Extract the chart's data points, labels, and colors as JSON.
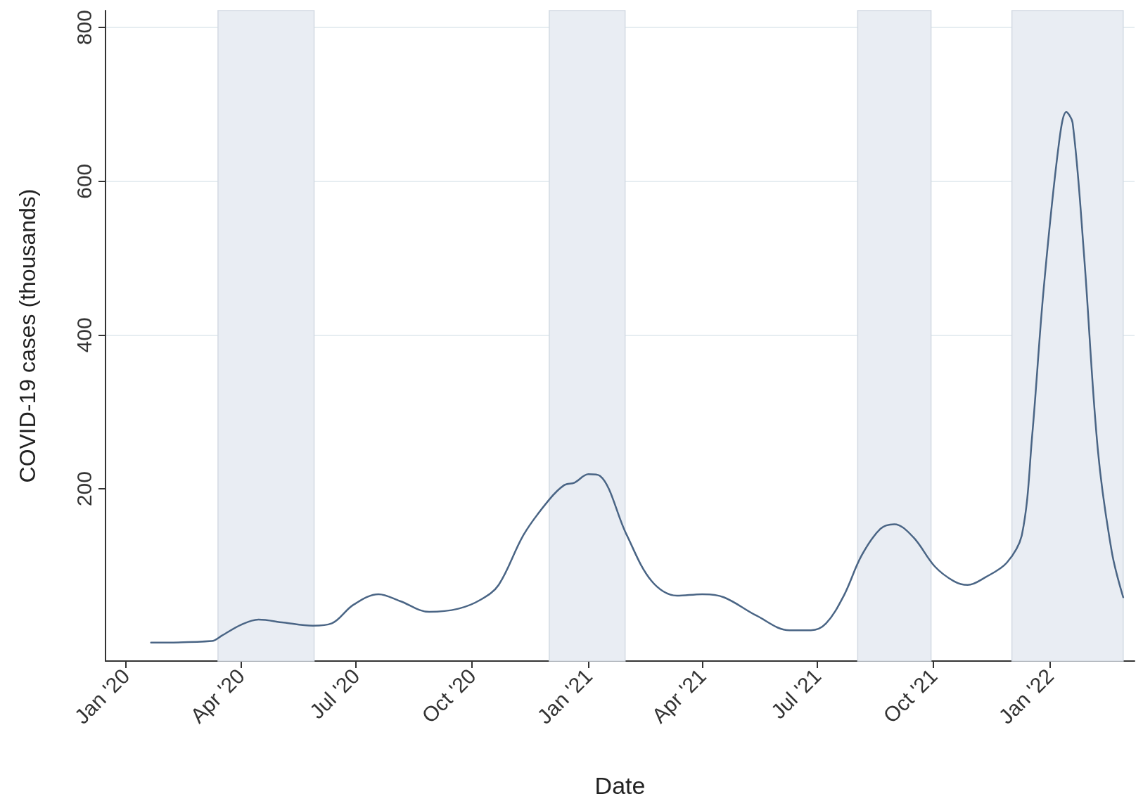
{
  "chart_data": {
    "type": "line",
    "xlabel": "Date",
    "ylabel": "COVID-19 cases (thousands)",
    "x": [
      "2020-01-21",
      "2020-03-09",
      "2020-03-17",
      "2020-04-01",
      "2020-04-15",
      "2020-05-05",
      "2020-05-28",
      "2020-06-12",
      "2020-06-29",
      "2020-07-19",
      "2020-08-05",
      "2020-08-28",
      "2020-09-20",
      "2020-10-08",
      "2020-10-22",
      "2020-11-11",
      "2020-12-01",
      "2020-12-13",
      "2020-12-21",
      "2021-01-01",
      "2021-01-10",
      "2021-01-31",
      "2021-02-20",
      "2021-03-12",
      "2021-04-01",
      "2021-04-18",
      "2021-05-14",
      "2021-06-09",
      "2021-06-26",
      "2021-07-08",
      "2021-07-22",
      "2021-08-05",
      "2021-08-20",
      "2021-08-31",
      "2021-09-15",
      "2021-10-02",
      "2021-10-17",
      "2021-10-28",
      "2021-11-11",
      "2021-11-28",
      "2021-12-10",
      "2021-12-18",
      "2021-12-27",
      "2022-01-08",
      "2022-01-14",
      "2022-01-19",
      "2022-01-28",
      "2022-02-08",
      "2022-02-19",
      "2022-02-28"
    ],
    "series": [
      {
        "color": "#4a6585",
        "values": [
          0,
          2,
          9,
          23,
          30,
          26,
          22,
          25,
          49,
          63,
          54,
          40,
          44,
          56,
          75,
          141,
          186,
          205,
          208,
          219,
          217,
          141,
          80,
          61,
          63,
          59,
          35,
          16,
          16,
          25,
          61,
          113,
          148,
          154,
          137,
          99,
          80,
          75,
          85,
          104,
          141,
          269,
          458,
          647,
          690,
          676,
          505,
          250,
          118,
          59
        ]
      }
    ],
    "xlim": [
      "2019-12-16",
      "2022-03-09"
    ],
    "xticks": [
      {
        "value": "2020-01-01",
        "label": "Jan '20"
      },
      {
        "value": "2020-04-01",
        "label": "Apr '20"
      },
      {
        "value": "2020-07-01",
        "label": "Jul '20"
      },
      {
        "value": "2020-10-01",
        "label": "Oct '20"
      },
      {
        "value": "2021-01-01",
        "label": "Jan '21"
      },
      {
        "value": "2021-04-01",
        "label": "Apr '21"
      },
      {
        "value": "2021-07-01",
        "label": "Jul '21"
      },
      {
        "value": "2021-10-01",
        "label": "Oct '21"
      },
      {
        "value": "2022-01-01",
        "label": "Jan '22"
      }
    ],
    "ylim": [
      -24,
      822
    ],
    "yticks": [
      200,
      400,
      600,
      800
    ],
    "grid": "y",
    "line_style": "solid",
    "marker": "none",
    "bands": [
      {
        "axis": "x",
        "from": "2020-03-14",
        "to": "2020-05-29",
        "color": "#e9edf3"
      },
      {
        "axis": "x",
        "from": "2020-12-01",
        "to": "2021-01-30",
        "color": "#e9edf3"
      },
      {
        "axis": "x",
        "from": "2021-08-02",
        "to": "2021-09-29",
        "color": "#e9edf3"
      },
      {
        "axis": "x",
        "from": "2021-12-02",
        "to": "2022-02-28",
        "color": "#e9edf3"
      }
    ]
  }
}
